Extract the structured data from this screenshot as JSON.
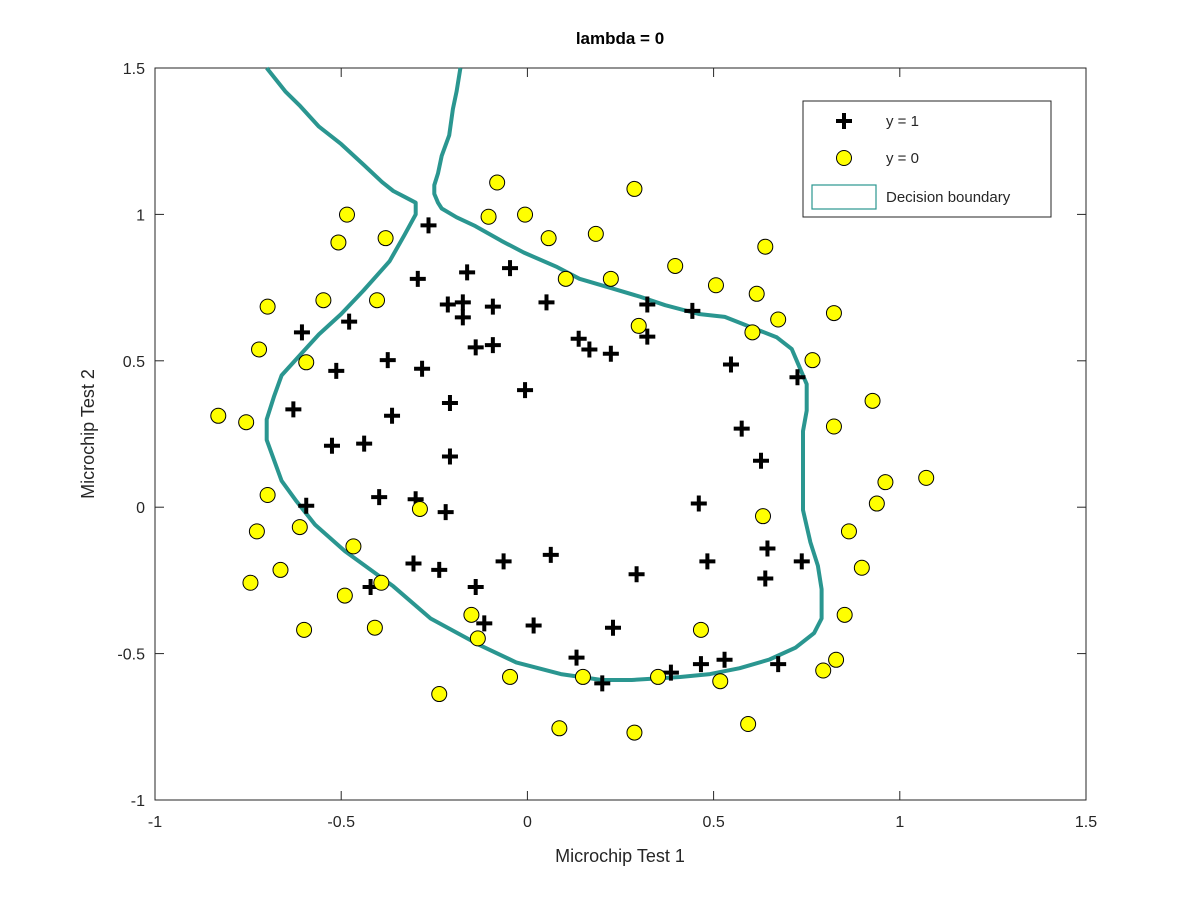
{
  "chart_data": {
    "type": "scatter",
    "title": "lambda = 0",
    "xlabel": "Microchip Test 1",
    "ylabel": "Microchip Test 2",
    "xlim": [
      -1,
      1.5
    ],
    "ylim": [
      -1,
      1.5
    ],
    "xticks": [
      "-1",
      "-0.5",
      "0",
      "0.5",
      "1",
      "1.5"
    ],
    "yticks": [
      "-1",
      "-0.5",
      "0",
      "0.5",
      "1",
      "1.5"
    ],
    "grid": false,
    "legend_position": "top-right",
    "legend": [
      "y = 1",
      "y = 0",
      "Decision boundary"
    ],
    "colors": {
      "positive": "#000000",
      "negative": "#ffff00",
      "boundary": "#2a9690"
    },
    "series": [
      {
        "name": "y = 1",
        "marker": "plus",
        "points": [
          [
            0.051267,
            0.69956
          ],
          [
            -0.092742,
            0.68494
          ],
          [
            -0.21371,
            0.69225
          ],
          [
            -0.375,
            0.50219
          ],
          [
            -0.51325,
            0.46564
          ],
          [
            -0.52477,
            0.2098
          ],
          [
            -0.39804,
            0.034357
          ],
          [
            -0.30588,
            -0.19225
          ],
          [
            0.016705,
            -0.40424
          ],
          [
            0.13191,
            -0.51389
          ],
          [
            0.38537,
            -0.56506
          ],
          [
            0.52938,
            -0.5212
          ],
          [
            0.63882,
            -0.24342
          ],
          [
            0.73675,
            -0.18494
          ],
          [
            0.54666,
            0.48757
          ],
          [
            0.322,
            0.5826
          ],
          [
            0.16647,
            0.53874
          ],
          [
            -0.046659,
            0.81652
          ],
          [
            -0.17339,
            0.69956
          ],
          [
            -0.47869,
            0.63377
          ],
          [
            -0.60541,
            0.59722
          ],
          [
            -0.62846,
            0.33406
          ],
          [
            -0.59389,
            0.005117
          ],
          [
            -0.42108,
            -0.27266
          ],
          [
            -0.11578,
            -0.39693
          ],
          [
            0.20104,
            -0.60161
          ],
          [
            0.46601,
            -0.53582
          ],
          [
            0.67339,
            -0.53582
          ],
          [
            -0.13882,
            0.54605
          ],
          [
            -0.29435,
            0.77997
          ],
          [
            -0.26555,
            0.96272
          ],
          [
            -0.16187,
            0.8019
          ],
          [
            -0.17339,
            0.64839
          ],
          [
            -0.28283,
            0.47295
          ],
          [
            -0.36348,
            0.31213
          ],
          [
            -0.30012,
            0.027047
          ],
          [
            -0.23675,
            -0.21418
          ],
          [
            -0.06394,
            -0.18494
          ],
          [
            0.062788,
            -0.16301
          ],
          [
            0.22984,
            -0.41155
          ],
          [
            0.2932,
            -0.2288
          ],
          [
            0.48329,
            -0.18494
          ],
          [
            0.64459,
            -0.14108
          ],
          [
            0.46025,
            0.012427
          ],
          [
            0.6273,
            0.15863
          ],
          [
            0.57546,
            0.26827
          ],
          [
            0.72523,
            0.44371
          ],
          [
            0.22408,
            0.52412
          ],
          [
            0.44297,
            0.67032
          ],
          [
            0.322,
            0.69225
          ],
          [
            0.13767,
            0.57529
          ],
          [
            -0.0063364,
            0.39985
          ],
          [
            -0.092742,
            0.55336
          ],
          [
            -0.20795,
            0.35599
          ],
          [
            -0.20795,
            0.17325
          ],
          [
            -0.43836,
            0.21711
          ],
          [
            -0.21947,
            -0.016813
          ],
          [
            -0.13882,
            -0.27266
          ]
        ]
      },
      {
        "name": "y = 0",
        "marker": "circle",
        "points": [
          [
            0.18376,
            0.93348
          ],
          [
            0.22408,
            0.77997
          ],
          [
            0.29896,
            0.61915
          ],
          [
            0.50634,
            0.75804
          ],
          [
            0.61578,
            0.7288
          ],
          [
            0.60426,
            0.59722
          ],
          [
            0.76555,
            0.50219
          ],
          [
            0.92684,
            0.3633
          ],
          [
            0.82316,
            0.27558
          ],
          [
            0.96141,
            0.085526
          ],
          [
            0.93836,
            0.012427
          ],
          [
            0.86348,
            -0.082602
          ],
          [
            0.89804,
            -0.20687
          ],
          [
            0.85196,
            -0.36769
          ],
          [
            0.82892,
            -0.5212
          ],
          [
            0.79435,
            -0.55775
          ],
          [
            0.59274,
            -0.7405
          ],
          [
            0.51786,
            -0.5943
          ],
          [
            0.46601,
            -0.41886
          ],
          [
            0.35081,
            -0.57968
          ],
          [
            0.28744,
            -0.76974
          ],
          [
            0.085829,
            -0.75512
          ],
          [
            0.14919,
            -0.57968
          ],
          [
            -0.13306,
            -0.4481
          ],
          [
            -0.40956,
            -0.41155
          ],
          [
            -0.39228,
            -0.25804
          ],
          [
            -0.74366,
            -0.25804
          ],
          [
            -0.69758,
            0.041667
          ],
          [
            -0.75518,
            0.2902
          ],
          [
            -0.69758,
            0.68494
          ],
          [
            -0.4038,
            0.70687
          ],
          [
            -0.38076,
            0.91886
          ],
          [
            -0.50749,
            0.90424
          ],
          [
            -0.54781,
            0.70687
          ],
          [
            0.10311,
            0.77997
          ],
          [
            0.057028,
            0.91886
          ],
          [
            -0.10426,
            0.99196
          ],
          [
            -0.081221,
            1.1089
          ],
          [
            0.28744,
            1.087
          ],
          [
            0.39689,
            0.82383
          ],
          [
            0.63882,
            0.88962
          ],
          [
            0.82316,
            0.66301
          ],
          [
            0.67339,
            0.64108
          ],
          [
            1.0709,
            0.10015
          ],
          [
            -0.046659,
            -0.57968
          ],
          [
            -0.23675,
            -0.63816
          ],
          [
            -0.15035,
            -0.36769
          ],
          [
            -0.49021,
            -0.3019
          ],
          [
            -0.46717,
            -0.13377
          ],
          [
            -0.28859,
            -0.0060673
          ],
          [
            -0.61118,
            -0.067982
          ],
          [
            -0.66302,
            -0.21418
          ],
          [
            -0.59965,
            -0.41886
          ],
          [
            -0.72638,
            -0.082602
          ],
          [
            -0.83007,
            0.31213
          ],
          [
            -0.72062,
            0.53874
          ],
          [
            -0.59389,
            0.49488
          ],
          [
            -0.48445,
            0.99927
          ],
          [
            -0.0063364,
            0.99927
          ],
          [
            0.63265,
            -0.030612
          ]
        ]
      },
      {
        "name": "Decision boundary",
        "type": "line",
        "points": [
          [
            -0.7,
            1.5
          ],
          [
            -0.65,
            1.42
          ],
          [
            -0.61,
            1.37
          ],
          [
            -0.56,
            1.3
          ],
          [
            -0.5,
            1.24
          ],
          [
            -0.44,
            1.17
          ],
          [
            -0.39,
            1.11
          ],
          [
            -0.36,
            1.08
          ],
          [
            -0.33,
            1.06
          ],
          [
            -0.3,
            1.04
          ],
          [
            -0.3,
            1.0
          ],
          [
            -0.33,
            0.93
          ],
          [
            -0.37,
            0.84
          ],
          [
            -0.44,
            0.74
          ],
          [
            -0.5,
            0.66
          ],
          [
            -0.56,
            0.59
          ],
          [
            -0.61,
            0.52
          ],
          [
            -0.66,
            0.45
          ],
          [
            -0.68,
            0.38
          ],
          [
            -0.7,
            0.3
          ],
          [
            -0.7,
            0.23
          ],
          [
            -0.66,
            0.09
          ],
          [
            -0.62,
            0.02
          ],
          [
            -0.57,
            -0.06
          ],
          [
            -0.49,
            -0.15
          ],
          [
            -0.36,
            -0.27
          ],
          [
            -0.26,
            -0.38
          ],
          [
            -0.13,
            -0.47
          ],
          [
            -0.03,
            -0.53
          ],
          [
            0.09,
            -0.57
          ],
          [
            0.2,
            -0.59
          ],
          [
            0.28,
            -0.59
          ],
          [
            0.41,
            -0.58
          ],
          [
            0.49,
            -0.57
          ],
          [
            0.57,
            -0.55
          ],
          [
            0.65,
            -0.52
          ],
          [
            0.72,
            -0.48
          ],
          [
            0.77,
            -0.43
          ],
          [
            0.79,
            -0.38
          ],
          [
            0.79,
            -0.28
          ],
          [
            0.78,
            -0.2
          ],
          [
            0.76,
            -0.12
          ],
          [
            0.74,
            -0.01
          ],
          [
            0.74,
            0.13
          ],
          [
            0.74,
            0.26
          ],
          [
            0.75,
            0.33
          ],
          [
            0.75,
            0.42
          ],
          [
            0.73,
            0.48
          ],
          [
            0.71,
            0.54
          ],
          [
            0.67,
            0.58
          ],
          [
            0.61,
            0.61
          ],
          [
            0.53,
            0.65
          ],
          [
            0.46,
            0.66
          ],
          [
            0.37,
            0.69
          ],
          [
            0.3,
            0.72
          ],
          [
            0.22,
            0.75
          ],
          [
            0.14,
            0.78
          ],
          [
            0.08,
            0.82
          ],
          [
            -0.01,
            0.87
          ],
          [
            -0.07,
            0.91
          ],
          [
            -0.14,
            0.96
          ],
          [
            -0.19,
            0.99
          ],
          [
            -0.23,
            1.02
          ],
          [
            -0.24,
            1.04
          ],
          [
            -0.25,
            1.07
          ],
          [
            -0.25,
            1.1
          ],
          [
            -0.24,
            1.14
          ],
          [
            -0.23,
            1.2
          ],
          [
            -0.21,
            1.27
          ],
          [
            -0.2,
            1.36
          ],
          [
            -0.19,
            1.42
          ],
          [
            -0.18,
            1.5
          ]
        ]
      }
    ]
  }
}
